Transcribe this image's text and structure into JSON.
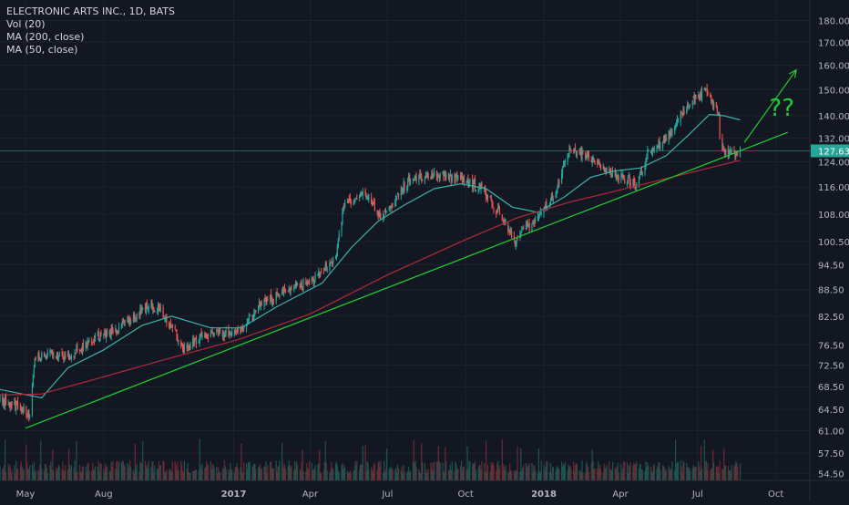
{
  "chart_data": {
    "type": "candlestick",
    "title": "ELECTRONIC ARTS INC., 1D, BATS",
    "indicators": [
      "Vol (20)",
      "MA (200, close)",
      "MA (50, close)"
    ],
    "y_axis_ticks": [
      180.0,
      170.0,
      160.0,
      150.0,
      140.0,
      132.0,
      124.0,
      116.0,
      108.0,
      100.5,
      94.5,
      88.5,
      82.5,
      76.5,
      72.5,
      68.5,
      64.5,
      61.0,
      57.5,
      54.5
    ],
    "y_scale": "log",
    "ylim": [
      53.5,
      190
    ],
    "x_axis_labels": [
      "May",
      "Aug",
      "2017",
      "Apr",
      "Jul",
      "Oct",
      "2018",
      "Apr",
      "Jul",
      "Oct"
    ],
    "x_range": [
      "2016-04-01",
      "2018-11-10"
    ],
    "last_price": 127.63,
    "last_price_label": "127.63",
    "price_path": [
      {
        "date": "2016-04-01",
        "price": 66.0
      },
      {
        "date": "2016-04-25",
        "price": 65.0
      },
      {
        "date": "2016-05-06",
        "price": 63.5
      },
      {
        "date": "2016-05-12",
        "price": 73.5
      },
      {
        "date": "2016-05-28",
        "price": 75.0
      },
      {
        "date": "2016-06-20",
        "price": 74.0
      },
      {
        "date": "2016-07-25",
        "price": 78.0
      },
      {
        "date": "2016-08-20",
        "price": 80.0
      },
      {
        "date": "2016-09-25",
        "price": 85.0
      },
      {
        "date": "2016-10-10",
        "price": 83.0
      },
      {
        "date": "2016-11-03",
        "price": 76.0
      },
      {
        "date": "2016-12-05",
        "price": 79.0
      },
      {
        "date": "2017-01-05",
        "price": 79.0
      },
      {
        "date": "2017-02-01",
        "price": 85.0
      },
      {
        "date": "2017-03-01",
        "price": 88.0
      },
      {
        "date": "2017-04-05",
        "price": 91.0
      },
      {
        "date": "2017-05-01",
        "price": 96.0
      },
      {
        "date": "2017-05-10",
        "price": 110.0
      },
      {
        "date": "2017-06-01",
        "price": 114.0
      },
      {
        "date": "2017-06-25",
        "price": 107.0
      },
      {
        "date": "2017-07-25",
        "price": 118.0
      },
      {
        "date": "2017-08-25",
        "price": 120.0
      },
      {
        "date": "2017-09-25",
        "price": 118.0
      },
      {
        "date": "2017-10-20",
        "price": 116.0
      },
      {
        "date": "2017-11-10",
        "price": 108.0
      },
      {
        "date": "2017-11-28",
        "price": 101.0
      },
      {
        "date": "2017-12-20",
        "price": 106.0
      },
      {
        "date": "2018-01-15",
        "price": 114.0
      },
      {
        "date": "2018-01-30",
        "price": 128.0
      },
      {
        "date": "2018-03-01",
        "price": 125.0
      },
      {
        "date": "2018-03-25",
        "price": 120.0
      },
      {
        "date": "2018-04-20",
        "price": 117.0
      },
      {
        "date": "2018-05-05",
        "price": 128.0
      },
      {
        "date": "2018-05-25",
        "price": 132.0
      },
      {
        "date": "2018-06-20",
        "price": 144.0
      },
      {
        "date": "2018-07-10",
        "price": 149.0
      },
      {
        "date": "2018-07-26",
        "price": 140.0
      },
      {
        "date": "2018-07-28",
        "price": 128.0
      },
      {
        "date": "2018-08-10",
        "price": 127.0
      },
      {
        "date": "2018-08-20",
        "price": 127.6
      }
    ],
    "moving_averages": [
      {
        "name": "MA (50, close)",
        "color": "#3bb3a8",
        "points": [
          {
            "date": "2016-04-01",
            "price": 68.0
          },
          {
            "date": "2016-05-20",
            "price": 66.5
          },
          {
            "date": "2016-06-20",
            "price": 72.0
          },
          {
            "date": "2016-08-01",
            "price": 75.5
          },
          {
            "date": "2016-09-15",
            "price": 80.5
          },
          {
            "date": "2016-10-20",
            "price": 82.5
          },
          {
            "date": "2016-12-05",
            "price": 80.0
          },
          {
            "date": "2017-01-10",
            "price": 80.0
          },
          {
            "date": "2017-02-20",
            "price": 84.5
          },
          {
            "date": "2017-04-15",
            "price": 90.0
          },
          {
            "date": "2017-05-20",
            "price": 99.0
          },
          {
            "date": "2017-06-20",
            "price": 106.0
          },
          {
            "date": "2017-07-20",
            "price": 110.5
          },
          {
            "date": "2017-08-25",
            "price": 115.5
          },
          {
            "date": "2017-09-25",
            "price": 117.0
          },
          {
            "date": "2017-10-25",
            "price": 115.5
          },
          {
            "date": "2017-11-25",
            "price": 110.0
          },
          {
            "date": "2017-12-25",
            "price": 108.5
          },
          {
            "date": "2018-01-25",
            "price": 113.0
          },
          {
            "date": "2018-02-25",
            "price": 119.0
          },
          {
            "date": "2018-03-25",
            "price": 121.0
          },
          {
            "date": "2018-04-25",
            "price": 122.0
          },
          {
            "date": "2018-05-25",
            "price": 126.0
          },
          {
            "date": "2018-06-20",
            "price": 133.0
          },
          {
            "date": "2018-07-15",
            "price": 140.5
          },
          {
            "date": "2018-08-01",
            "price": 140.0
          },
          {
            "date": "2018-08-20",
            "price": 138.5
          }
        ]
      },
      {
        "name": "MA (200, close)",
        "color": "#b02a3a",
        "points": [
          {
            "date": "2016-04-01",
            "price": 67.0
          },
          {
            "date": "2016-05-20",
            "price": 67.2
          },
          {
            "date": "2016-07-25",
            "price": 70.0
          },
          {
            "date": "2016-10-10",
            "price": 73.5
          },
          {
            "date": "2017-01-05",
            "price": 77.5
          },
          {
            "date": "2017-04-01",
            "price": 83.0
          },
          {
            "date": "2017-07-01",
            "price": 92.0
          },
          {
            "date": "2017-10-01",
            "price": 101.0
          },
          {
            "date": "2017-12-01",
            "price": 107.0
          },
          {
            "date": "2018-02-01",
            "price": 111.5
          },
          {
            "date": "2018-04-15",
            "price": 116.0
          },
          {
            "date": "2018-06-15",
            "price": 120.0
          },
          {
            "date": "2018-08-20",
            "price": 124.5
          }
        ]
      }
    ],
    "annotations": [
      {
        "type": "trendline",
        "color": "#1fcc33",
        "from": {
          "date": "2016-05-01",
          "price": 61.4
        },
        "to": {
          "date": "2018-10-15",
          "price": 134.0
        }
      },
      {
        "type": "arrow",
        "color": "#1fcc33",
        "from": {
          "date": "2018-08-25",
          "price": 130.5
        },
        "to": {
          "date": "2018-10-25",
          "price": 158.0
        }
      },
      {
        "type": "text",
        "color": "#1fcc33",
        "text": "??",
        "at": {
          "date": "2018-10-08",
          "price": 140.0
        }
      }
    ],
    "volume": {
      "color_up": "#1d5450",
      "color_down": "#6b2a33",
      "ma_color": "#e8a7a7"
    },
    "colors": {
      "background": "#131722",
      "grid": "#1e2330",
      "up": "#26a69a",
      "down": "#ef5350",
      "axis_text": "#b2b5be",
      "price_line": "#26a69a"
    }
  }
}
